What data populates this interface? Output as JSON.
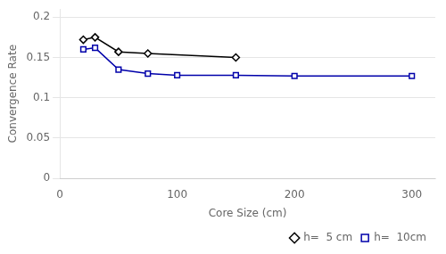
{
  "chart_data": {
    "type": "line",
    "x_label": "Core Size (cm)",
    "y_label": "Convergence Rate",
    "series": [
      {
        "name": "h=  5 cm",
        "color": "#000000",
        "marker": "diamond",
        "x": [
          20,
          30,
          50,
          75,
          150
        ],
        "values": [
          0.172,
          0.175,
          0.157,
          0.155,
          0.15
        ]
      },
      {
        "name": "h=  10cm",
        "color": "#0000aa",
        "marker": "square",
        "x": [
          20,
          30,
          50,
          75,
          100,
          150,
          200,
          300
        ],
        "values": [
          0.16,
          0.162,
          0.135,
          0.13,
          0.128,
          0.128,
          0.127,
          0.127
        ]
      }
    ],
    "xlim": [
      0,
      320
    ],
    "ylim": [
      0,
      0.21
    ],
    "xticks": [
      0,
      100,
      200,
      300
    ],
    "yticks": [
      0,
      0.05,
      0.1,
      0.15,
      0.2
    ],
    "grid": true,
    "legend": "lower right"
  }
}
